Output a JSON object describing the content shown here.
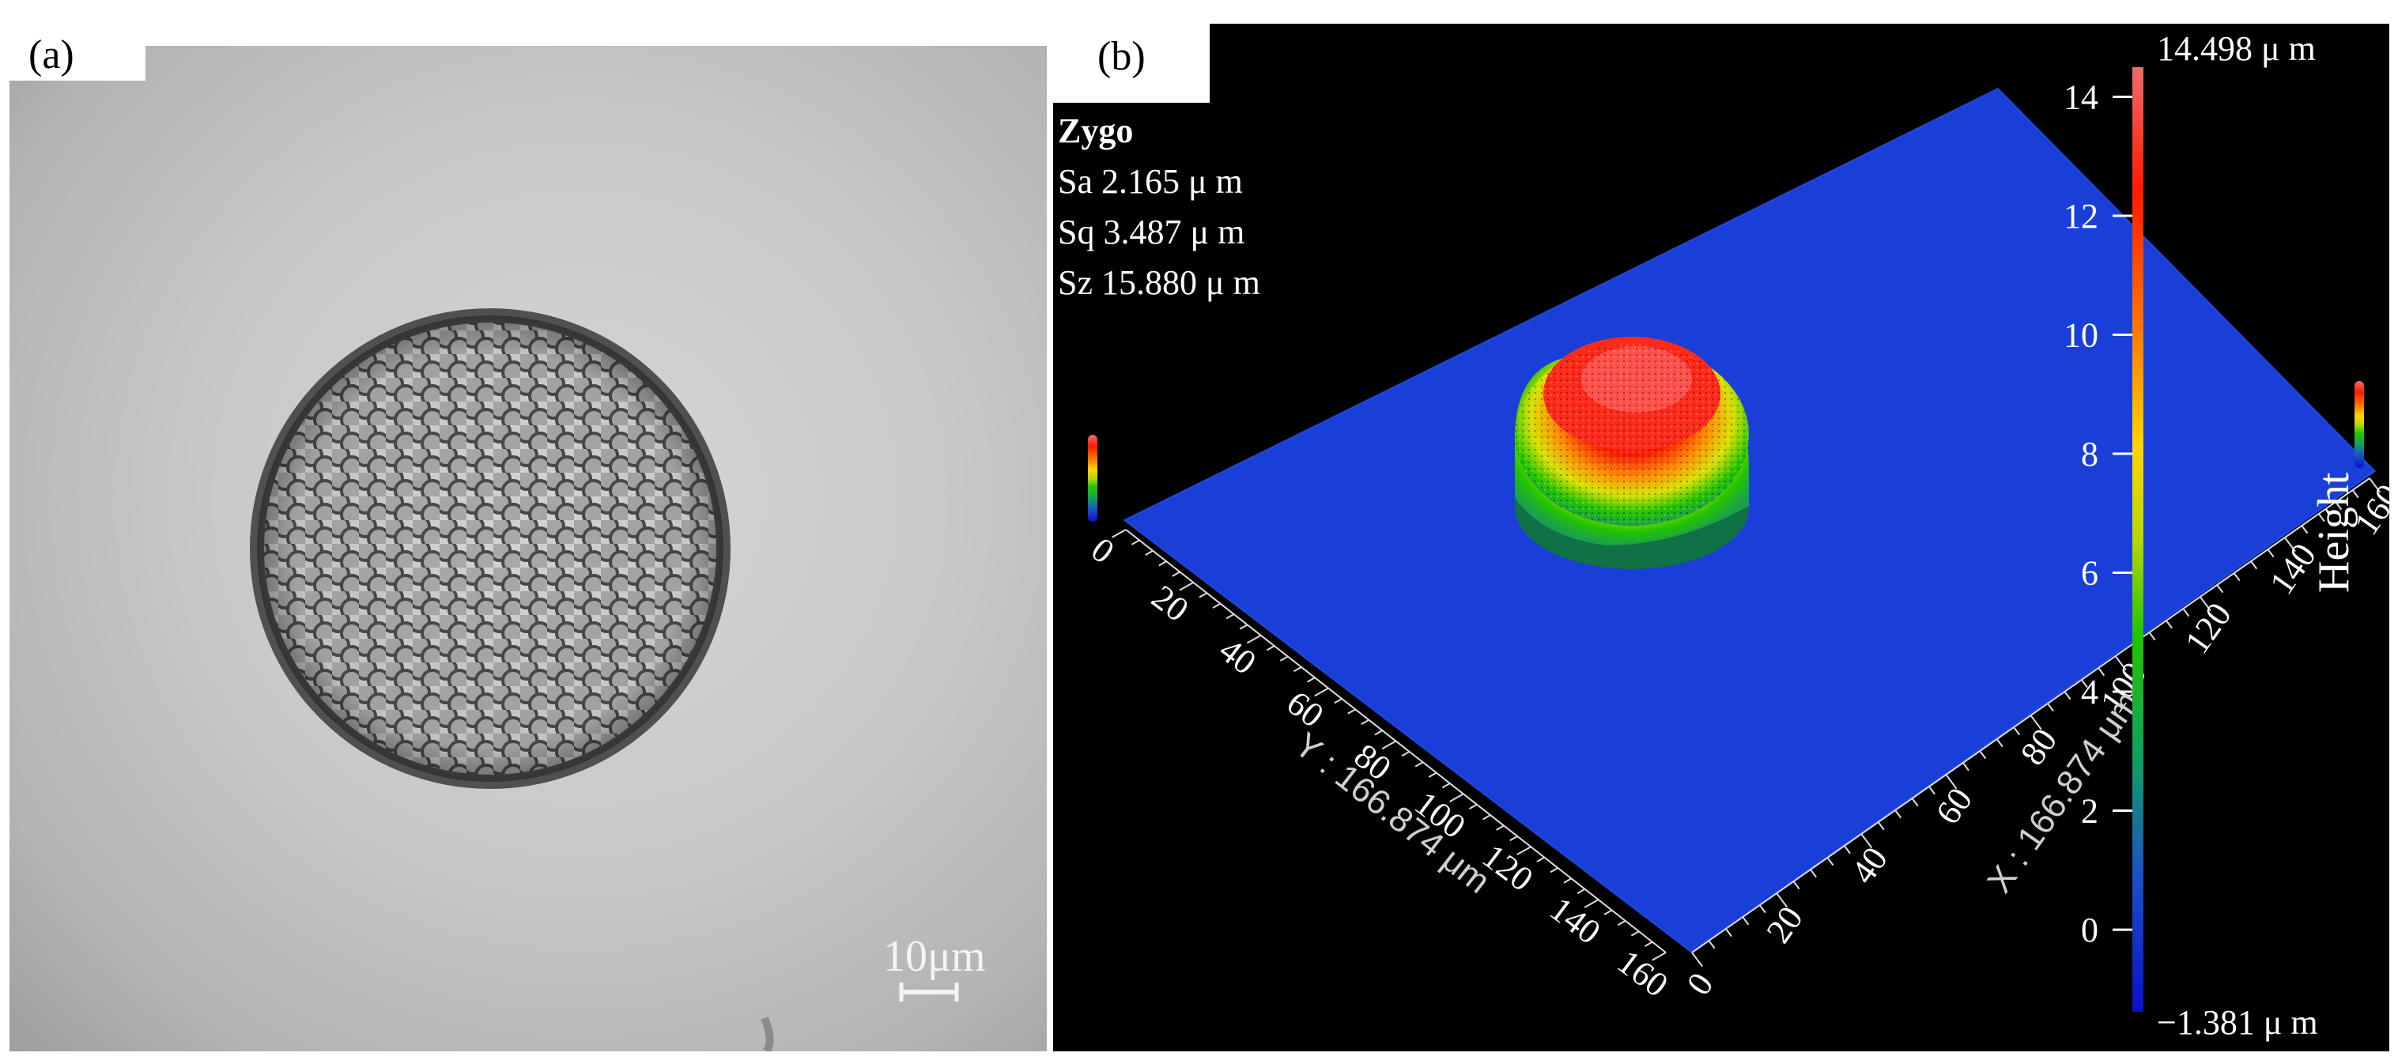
{
  "panels": {
    "a": {
      "label": "(a)",
      "scale_bar": "10μm"
    },
    "b": {
      "label": "(b)",
      "instrument": "Zygo",
      "stats": [
        {
          "name": "Sa",
          "value": "2.165 μ m"
        },
        {
          "name": "Sq",
          "value": "3.487 μ m"
        },
        {
          "name": "Sz",
          "value": "15.880 μ m"
        }
      ],
      "colorbar": {
        "max_label": "14.498 μ m",
        "min_label": "−1.381 μ m",
        "title": "Height",
        "ticks": [
          "14",
          "12",
          "10",
          "8",
          "6",
          "4",
          "2",
          "0"
        ],
        "colors": [
          "#f06a6a",
          "#ff1a00",
          "#ff7a00",
          "#ffd400",
          "#b8d800",
          "#22c400",
          "#12a060",
          "#1b4ec8",
          "#0a10c8"
        ]
      },
      "y_axis": {
        "label": "Y : 166.874 μm",
        "ticks": [
          "0",
          "20",
          "40",
          "60",
          "80",
          "100",
          "120",
          "140",
          "160"
        ]
      },
      "x_axis": {
        "label": "X : 166.874 μm",
        "ticks": [
          "0",
          "20",
          "40",
          "60",
          "80",
          "100",
          "120",
          "140",
          "160"
        ]
      },
      "surface_color": "#1a3fd9"
    }
  }
}
